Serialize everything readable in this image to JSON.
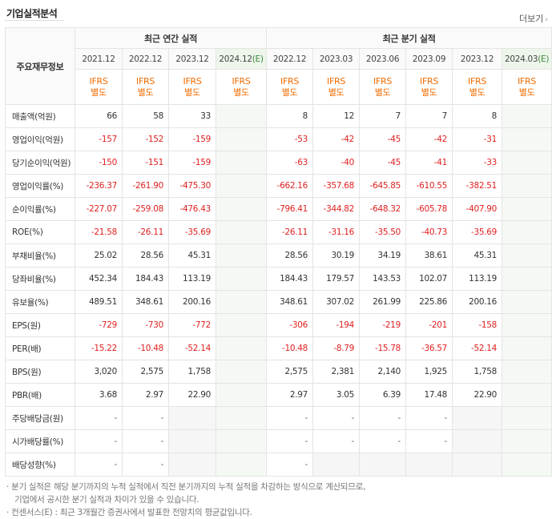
{
  "title": "기업실적분석",
  "more_label": "더보기",
  "header": {
    "row_label": "주요재무정보",
    "annual_group": "최근 연간 실적",
    "quarter_group": "최근 분기 실적",
    "annual_periods": [
      "2021.12",
      "2022.12",
      "2023.12",
      "2024.12"
    ],
    "quarter_periods": [
      "2022.12",
      "2023.03",
      "2023.06",
      "2023.09",
      "2023.12",
      "2024.03"
    ],
    "estimate_mark": "(E)",
    "ifrs_top": "IFRS",
    "ifrs_bottom": "별도"
  },
  "rows": [
    {
      "label": "매출액(억원)",
      "annual": [
        "66",
        "58",
        "33",
        ""
      ],
      "quarter": [
        "8",
        "12",
        "7",
        "7",
        "8",
        ""
      ]
    },
    {
      "label": "영업이익(억원)",
      "annual": [
        "-157",
        "-152",
        "-159",
        ""
      ],
      "quarter": [
        "-53",
        "-42",
        "-45",
        "-42",
        "-31",
        ""
      ]
    },
    {
      "label": "당기순이익(억원)",
      "annual": [
        "-150",
        "-151",
        "-159",
        ""
      ],
      "quarter": [
        "-63",
        "-40",
        "-45",
        "-41",
        "-33",
        ""
      ]
    },
    {
      "label": "영업이익률(%)",
      "annual": [
        "-236.37",
        "-261.90",
        "-475.30",
        ""
      ],
      "quarter": [
        "-662.16",
        "-357.68",
        "-645.85",
        "-610.55",
        "-382.51",
        ""
      ]
    },
    {
      "label": "순이익률(%)",
      "annual": [
        "-227.07",
        "-259.08",
        "-476.43",
        ""
      ],
      "quarter": [
        "-796.41",
        "-344.82",
        "-648.32",
        "-605.78",
        "-407.90",
        ""
      ]
    },
    {
      "label": "ROE(%)",
      "annual": [
        "-21.58",
        "-26.11",
        "-35.69",
        ""
      ],
      "quarter": [
        "-26.11",
        "-31.16",
        "-35.50",
        "-40.73",
        "-35.69",
        ""
      ]
    },
    {
      "label": "부채비율(%)",
      "annual": [
        "25.02",
        "28.56",
        "45.31",
        ""
      ],
      "quarter": [
        "28.56",
        "30.19",
        "34.19",
        "38.61",
        "45.31",
        ""
      ]
    },
    {
      "label": "당좌비율(%)",
      "annual": [
        "452.34",
        "184.43",
        "113.19",
        ""
      ],
      "quarter": [
        "184.43",
        "179.57",
        "143.53",
        "102.07",
        "113.19",
        ""
      ]
    },
    {
      "label": "유보율(%)",
      "annual": [
        "489.51",
        "348.61",
        "200.16",
        ""
      ],
      "quarter": [
        "348.61",
        "307.02",
        "261.99",
        "225.86",
        "200.16",
        ""
      ]
    },
    {
      "label": "EPS(원)",
      "annual": [
        "-729",
        "-730",
        "-772",
        ""
      ],
      "quarter": [
        "-306",
        "-194",
        "-219",
        "-201",
        "-158",
        ""
      ]
    },
    {
      "label": "PER(배)",
      "annual": [
        "-15.22",
        "-10.48",
        "-52.14",
        ""
      ],
      "quarter": [
        "-10.48",
        "-8.79",
        "-15.78",
        "-36.57",
        "-52.14",
        ""
      ]
    },
    {
      "label": "BPS(원)",
      "annual": [
        "3,020",
        "2,575",
        "1,758",
        ""
      ],
      "quarter": [
        "2,575",
        "2,381",
        "2,140",
        "1,925",
        "1,758",
        ""
      ]
    },
    {
      "label": "PBR(배)",
      "annual": [
        "3.68",
        "2.97",
        "22.90",
        ""
      ],
      "quarter": [
        "2.97",
        "3.05",
        "6.39",
        "17.48",
        "22.90",
        ""
      ]
    },
    {
      "label": "주당배당금(원)",
      "annual": [
        "-",
        "-",
        "",
        ""
      ],
      "quarter": [
        "-",
        "-",
        "-",
        "-",
        "",
        ""
      ]
    },
    {
      "label": "시가배당률(%)",
      "annual": [
        "-",
        "-",
        "",
        ""
      ],
      "quarter": [
        "-",
        "-",
        "-",
        "-",
        "",
        ""
      ]
    },
    {
      "label": "배당성향(%)",
      "annual": [
        "-",
        "-",
        "",
        ""
      ],
      "quarter": [
        "-",
        "",
        "",
        "",
        "",
        ""
      ]
    }
  ],
  "notes": {
    "line1": "분기 실적은 해당 분기까지의 누적 실적에서 직전 분기까지의 누적 실적을 차감하는 방식으로 계산되므로,",
    "line2": "기업에서 공시한 분기 실적과 차이가 있을 수 있습니다.",
    "line3": "컨센서스(E) : 최근 3개월간 증권사에서 발표한 전망치의 평균값입니다."
  }
}
